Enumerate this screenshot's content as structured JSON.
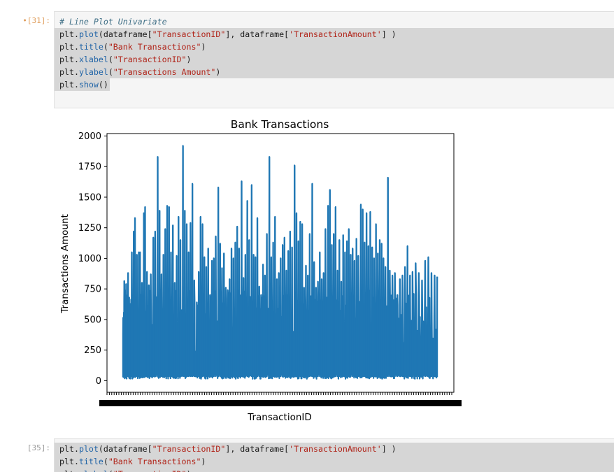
{
  "cells": [
    {
      "prompt": "•[31]:",
      "lines": [
        [
          {
            "t": "# Line Plot Univariate",
            "k": "comment"
          }
        ],
        [
          {
            "t": "plt",
            "k": "id"
          },
          {
            "t": ".",
            "k": "pun"
          },
          {
            "t": "plot",
            "k": "fn"
          },
          {
            "t": "(dataframe[",
            "k": "pun"
          },
          {
            "t": "\"TransactionID\"",
            "k": "str"
          },
          {
            "t": "], dataframe[",
            "k": "pun"
          },
          {
            "t": "'TransactionAmount'",
            "k": "str"
          },
          {
            "t": "] )",
            "k": "pun"
          }
        ],
        [
          {
            "t": "plt",
            "k": "id"
          },
          {
            "t": ".",
            "k": "pun"
          },
          {
            "t": "title",
            "k": "fn"
          },
          {
            "t": "(",
            "k": "pun"
          },
          {
            "t": "\"Bank Transactions\"",
            "k": "str"
          },
          {
            "t": ")",
            "k": "pun"
          }
        ],
        [
          {
            "t": "plt",
            "k": "id"
          },
          {
            "t": ".",
            "k": "pun"
          },
          {
            "t": "xlabel",
            "k": "fn"
          },
          {
            "t": "(",
            "k": "pun"
          },
          {
            "t": "\"TransactionID\"",
            "k": "str"
          },
          {
            "t": ")",
            "k": "pun"
          }
        ],
        [
          {
            "t": "plt",
            "k": "id"
          },
          {
            "t": ".",
            "k": "pun"
          },
          {
            "t": "ylabel",
            "k": "fn"
          },
          {
            "t": "(",
            "k": "pun"
          },
          {
            "t": "\"Transactions Amount\"",
            "k": "str"
          },
          {
            "t": ")",
            "k": "pun"
          }
        ],
        [
          {
            "t": "plt",
            "k": "id"
          },
          {
            "t": ".",
            "k": "pun"
          },
          {
            "t": "show",
            "k": "fn"
          },
          {
            "t": "()",
            "k": "pun"
          }
        ]
      ]
    },
    {
      "prompt": "[35]:",
      "lines": [
        [
          {
            "t": "plt",
            "k": "id"
          },
          {
            "t": ".",
            "k": "pun"
          },
          {
            "t": "plot",
            "k": "fn"
          },
          {
            "t": "(dataframe[",
            "k": "pun"
          },
          {
            "t": "\"TransactionID\"",
            "k": "str"
          },
          {
            "t": "], dataframe[",
            "k": "pun"
          },
          {
            "t": "'TransactionAmount'",
            "k": "str"
          },
          {
            "t": "] )",
            "k": "pun"
          }
        ],
        [
          {
            "t": "plt",
            "k": "id"
          },
          {
            "t": ".",
            "k": "pun"
          },
          {
            "t": "title",
            "k": "fn"
          },
          {
            "t": "(",
            "k": "pun"
          },
          {
            "t": "\"Bank Transactions\"",
            "k": "str"
          },
          {
            "t": ")",
            "k": "pun"
          }
        ],
        [
          {
            "t": "plt",
            "k": "id"
          },
          {
            "t": ".",
            "k": "pun"
          },
          {
            "t": "xlabel",
            "k": "fn"
          },
          {
            "t": "(",
            "k": "pun"
          },
          {
            "t": "\"TransactionID\"",
            "k": "str"
          },
          {
            "t": ")",
            "k": "pun"
          }
        ]
      ]
    }
  ],
  "chart_data": {
    "type": "line",
    "title": "Bank Transactions",
    "xlabel": "TransactionID",
    "ylabel": "Transactions Amount",
    "ylim": [
      -95,
      2020
    ],
    "yticks": [
      0,
      250,
      500,
      750,
      1000,
      1250,
      1500,
      1750,
      2000
    ],
    "series_color": "#1f77b4",
    "x_tick_labels": "overlapping, illegible",
    "peaks": [
      {
        "x": 0.002,
        "y": 380
      },
      {
        "x": 0.006,
        "y": 815
      },
      {
        "x": 0.012,
        "y": 790
      },
      {
        "x": 0.018,
        "y": 880
      },
      {
        "x": 0.024,
        "y": 600
      },
      {
        "x": 0.03,
        "y": 1050
      },
      {
        "x": 0.036,
        "y": 1220
      },
      {
        "x": 0.04,
        "y": 1330
      },
      {
        "x": 0.046,
        "y": 1030
      },
      {
        "x": 0.052,
        "y": 1050
      },
      {
        "x": 0.056,
        "y": 1050
      },
      {
        "x": 0.062,
        "y": 800
      },
      {
        "x": 0.068,
        "y": 1370
      },
      {
        "x": 0.072,
        "y": 1420
      },
      {
        "x": 0.078,
        "y": 890
      },
      {
        "x": 0.084,
        "y": 780
      },
      {
        "x": 0.09,
        "y": 870
      },
      {
        "x": 0.098,
        "y": 1170
      },
      {
        "x": 0.104,
        "y": 1220
      },
      {
        "x": 0.112,
        "y": 1830
      },
      {
        "x": 0.118,
        "y": 1390
      },
      {
        "x": 0.124,
        "y": 870
      },
      {
        "x": 0.13,
        "y": 1030
      },
      {
        "x": 0.136,
        "y": 1240
      },
      {
        "x": 0.142,
        "y": 1430
      },
      {
        "x": 0.148,
        "y": 1420
      },
      {
        "x": 0.154,
        "y": 1050
      },
      {
        "x": 0.16,
        "y": 1270
      },
      {
        "x": 0.166,
        "y": 800
      },
      {
        "x": 0.172,
        "y": 1020
      },
      {
        "x": 0.178,
        "y": 1340
      },
      {
        "x": 0.184,
        "y": 1150
      },
      {
        "x": 0.192,
        "y": 1920
      },
      {
        "x": 0.198,
        "y": 1390
      },
      {
        "x": 0.204,
        "y": 1280
      },
      {
        "x": 0.21,
        "y": 1050
      },
      {
        "x": 0.216,
        "y": 1290
      },
      {
        "x": 0.222,
        "y": 1610
      },
      {
        "x": 0.228,
        "y": 820
      },
      {
        "x": 0.236,
        "y": 640
      },
      {
        "x": 0.242,
        "y": 890
      },
      {
        "x": 0.248,
        "y": 1340
      },
      {
        "x": 0.254,
        "y": 1280
      },
      {
        "x": 0.26,
        "y": 1010
      },
      {
        "x": 0.266,
        "y": 930
      },
      {
        "x": 0.272,
        "y": 1080
      },
      {
        "x": 0.278,
        "y": 700
      },
      {
        "x": 0.284,
        "y": 980
      },
      {
        "x": 0.29,
        "y": 1000
      },
      {
        "x": 0.296,
        "y": 1180
      },
      {
        "x": 0.304,
        "y": 1580
      },
      {
        "x": 0.31,
        "y": 1120
      },
      {
        "x": 0.316,
        "y": 920
      },
      {
        "x": 0.322,
        "y": 1040
      },
      {
        "x": 0.328,
        "y": 760
      },
      {
        "x": 0.334,
        "y": 740
      },
      {
        "x": 0.34,
        "y": 830
      },
      {
        "x": 0.346,
        "y": 1080
      },
      {
        "x": 0.352,
        "y": 1000
      },
      {
        "x": 0.358,
        "y": 1130
      },
      {
        "x": 0.364,
        "y": 1260
      },
      {
        "x": 0.37,
        "y": 1080
      },
      {
        "x": 0.378,
        "y": 1630
      },
      {
        "x": 0.384,
        "y": 840
      },
      {
        "x": 0.39,
        "y": 1030
      },
      {
        "x": 0.396,
        "y": 1470
      },
      {
        "x": 0.402,
        "y": 1150
      },
      {
        "x": 0.41,
        "y": 1600
      },
      {
        "x": 0.416,
        "y": 1030
      },
      {
        "x": 0.422,
        "y": 1010
      },
      {
        "x": 0.428,
        "y": 1330
      },
      {
        "x": 0.434,
        "y": 770
      },
      {
        "x": 0.44,
        "y": 700
      },
      {
        "x": 0.446,
        "y": 950
      },
      {
        "x": 0.452,
        "y": 860
      },
      {
        "x": 0.458,
        "y": 1200
      },
      {
        "x": 0.466,
        "y": 1830
      },
      {
        "x": 0.472,
        "y": 1010
      },
      {
        "x": 0.478,
        "y": 1130
      },
      {
        "x": 0.484,
        "y": 1340
      },
      {
        "x": 0.49,
        "y": 830
      },
      {
        "x": 0.496,
        "y": 880
      },
      {
        "x": 0.502,
        "y": 1000
      },
      {
        "x": 0.508,
        "y": 1110
      },
      {
        "x": 0.514,
        "y": 1170
      },
      {
        "x": 0.52,
        "y": 900
      },
      {
        "x": 0.526,
        "y": 1060
      },
      {
        "x": 0.532,
        "y": 1220
      },
      {
        "x": 0.538,
        "y": 1090
      },
      {
        "x": 0.546,
        "y": 1760
      },
      {
        "x": 0.552,
        "y": 1370
      },
      {
        "x": 0.558,
        "y": 1140
      },
      {
        "x": 0.564,
        "y": 1300
      },
      {
        "x": 0.57,
        "y": 1280
      },
      {
        "x": 0.576,
        "y": 760
      },
      {
        "x": 0.582,
        "y": 940
      },
      {
        "x": 0.588,
        "y": 860
      },
      {
        "x": 0.594,
        "y": 1200
      },
      {
        "x": 0.602,
        "y": 1610
      },
      {
        "x": 0.608,
        "y": 970
      },
      {
        "x": 0.614,
        "y": 760
      },
      {
        "x": 0.62,
        "y": 810
      },
      {
        "x": 0.626,
        "y": 1050
      },
      {
        "x": 0.632,
        "y": 830
      },
      {
        "x": 0.638,
        "y": 880
      },
      {
        "x": 0.644,
        "y": 1240
      },
      {
        "x": 0.652,
        "y": 1430
      },
      {
        "x": 0.658,
        "y": 1560
      },
      {
        "x": 0.664,
        "y": 1110
      },
      {
        "x": 0.67,
        "y": 1200
      },
      {
        "x": 0.676,
        "y": 1420
      },
      {
        "x": 0.682,
        "y": 900
      },
      {
        "x": 0.688,
        "y": 1150
      },
      {
        "x": 0.694,
        "y": 810
      },
      {
        "x": 0.7,
        "y": 1190
      },
      {
        "x": 0.706,
        "y": 1050
      },
      {
        "x": 0.712,
        "y": 1140
      },
      {
        "x": 0.718,
        "y": 1240
      },
      {
        "x": 0.724,
        "y": 1030
      },
      {
        "x": 0.73,
        "y": 1080
      },
      {
        "x": 0.736,
        "y": 980
      },
      {
        "x": 0.742,
        "y": 1160
      },
      {
        "x": 0.748,
        "y": 1020
      },
      {
        "x": 0.756,
        "y": 1440
      },
      {
        "x": 0.762,
        "y": 1400
      },
      {
        "x": 0.768,
        "y": 1130
      },
      {
        "x": 0.774,
        "y": 1370
      },
      {
        "x": 0.78,
        "y": 1100
      },
      {
        "x": 0.786,
        "y": 1380
      },
      {
        "x": 0.792,
        "y": 1090
      },
      {
        "x": 0.798,
        "y": 1000
      },
      {
        "x": 0.804,
        "y": 1280
      },
      {
        "x": 0.81,
        "y": 1040
      },
      {
        "x": 0.816,
        "y": 1150
      },
      {
        "x": 0.822,
        "y": 1120
      },
      {
        "x": 0.828,
        "y": 1000
      },
      {
        "x": 0.834,
        "y": 930
      },
      {
        "x": 0.842,
        "y": 1660
      },
      {
        "x": 0.848,
        "y": 900
      },
      {
        "x": 0.856,
        "y": 860
      },
      {
        "x": 0.864,
        "y": 880
      },
      {
        "x": 0.872,
        "y": 700
      },
      {
        "x": 0.88,
        "y": 830
      },
      {
        "x": 0.888,
        "y": 860
      },
      {
        "x": 0.896,
        "y": 930
      },
      {
        "x": 0.904,
        "y": 1100
      },
      {
        "x": 0.912,
        "y": 860
      },
      {
        "x": 0.92,
        "y": 890
      },
      {
        "x": 0.93,
        "y": 960
      },
      {
        "x": 0.94,
        "y": 880
      },
      {
        "x": 0.95,
        "y": 820
      },
      {
        "x": 0.96,
        "y": 980
      },
      {
        "x": 0.97,
        "y": 1010
      },
      {
        "x": 0.98,
        "y": 880
      },
      {
        "x": 0.99,
        "y": 860
      },
      {
        "x": 0.998,
        "y": 850
      }
    ]
  }
}
